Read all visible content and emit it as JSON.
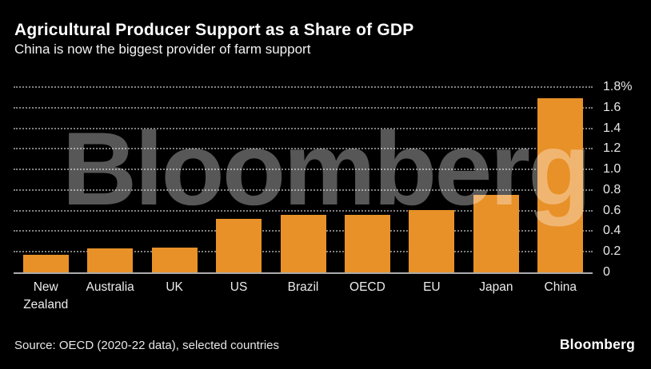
{
  "header": {
    "title": "Agricultural Producer Support as a Share of GDP",
    "subtitle": "China is now the biggest provider of farm support"
  },
  "chart_data": {
    "type": "bar",
    "title": "Agricultural Producer Support as a Share of GDP",
    "subtitle": "China is now the biggest provider of farm support",
    "categories": [
      "New Zealand",
      "Australia",
      "UK",
      "US",
      "Brazil",
      "OECD",
      "EU",
      "Japan",
      "China"
    ],
    "values": [
      0.18,
      0.24,
      0.25,
      0.53,
      0.57,
      0.57,
      0.61,
      0.76,
      1.7
    ],
    "xlabel": "",
    "ylabel": "",
    "unit": "% of GDP",
    "ylim": [
      0,
      1.8
    ],
    "yticks": [
      0,
      0.2,
      0.4,
      0.6,
      0.8,
      1.0,
      1.2,
      1.4,
      1.6,
      1.8
    ],
    "ytick_labels": [
      "0",
      "0.2",
      "0.4",
      "0.6",
      "0.8",
      "1.0",
      "1.2",
      "1.4",
      "1.6",
      "1.8%"
    ],
    "ytick_side": "right",
    "grid": "horizontal-dotted",
    "legend": "none",
    "bar_color": "#E89128",
    "background_color": "#000000",
    "text_color": "#FFFFFF",
    "gridline_color": "rgba(255,255,255,0.5)",
    "watermark": "Bloomberg"
  },
  "footer": {
    "source": "Source: OECD (2020-22 data), selected countries",
    "brand": "Bloomberg"
  }
}
